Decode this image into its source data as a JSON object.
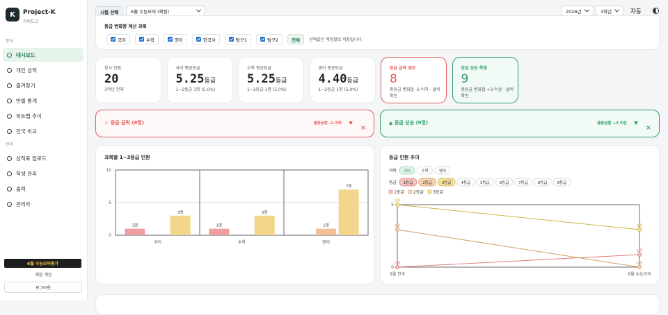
{
  "sidebar": {
    "logo": "K",
    "app_name": "Project-K",
    "subtitle": "가이드고",
    "sections": [
      {
        "title": "분석",
        "items": [
          "대시보드",
          "개인 성적",
          "즐겨찾기",
          "반별 통계",
          "히트맵 추이",
          "전국 비교"
        ]
      },
      {
        "title": "관리",
        "items": [
          "성적표 업로드",
          "학생 관리",
          "출력",
          "관리자"
        ]
      }
    ],
    "exam_badge": "6월 수능모의평가",
    "account": "체험 계정",
    "logout": "로그아웃"
  },
  "topbar": {
    "exam_label": "시험 선택",
    "exam": "6월 수능모의 (확정)",
    "year": "2026년",
    "grade": "3학년",
    "theme": "자동"
  },
  "subject_filter": {
    "title": "등급 변화량 계산 과목",
    "subjects": [
      "국어",
      "수학",
      "영어",
      "한국사",
      "탐구1",
      "탐구2"
    ],
    "all": "전체",
    "note": "선택값은 계정별로 저장됩니다."
  },
  "stats": [
    {
      "label": "응시 인원",
      "value": "20",
      "sub": "3학년 전체"
    },
    {
      "label": "국어 평균등급",
      "value": "5.25",
      "unit": "등급",
      "sub": "1~2등급 1명 (5.0%)"
    },
    {
      "label": "수학 평균등급",
      "value": "5.25",
      "unit": "등급",
      "sub": "1~2등급 1명 (5.0%)"
    },
    {
      "label": "영어 평균등급",
      "value": "4.40",
      "unit": "등급",
      "sub": "1~2등급 1명 (5.0%)"
    },
    {
      "label": "등급 급락 경보",
      "value": "8",
      "sub": "총등급 변화합 -2 이하 · 클릭 확인",
      "color": "#e25c5c"
    },
    {
      "label": "등급 상승 학생",
      "value": "9",
      "sub": "총등급 변화합 +3 이상 · 클릭 확인",
      "color": "#2f9e6c"
    }
  ],
  "alerts": [
    {
      "title": "⚠ 등급 급락 (8명)",
      "criterion": "총등급합 -2 이하",
      "color": "#e25c5c"
    },
    {
      "title": "▲ 등급 상승 (9명)",
      "criterion": "총등급합 +3 이상",
      "color": "#2f9e6c"
    }
  ],
  "chart_data": [
    {
      "type": "bar",
      "title": "과목별 1~3등급 인원",
      "categories": [
        "국어",
        "수학",
        "영어"
      ],
      "series": [
        {
          "color": "#ef9f9f",
          "values": [
            1,
            1,
            0
          ],
          "value_labels": [
            "1명",
            "1명",
            null
          ]
        },
        {
          "color": "#f5bf95",
          "values": [
            0,
            0,
            1
          ],
          "value_labels": [
            null,
            null,
            "1명"
          ]
        },
        {
          "color": "#f3d68c",
          "values": [
            3,
            3,
            7
          ],
          "value_labels": [
            "3명",
            "3명",
            "7명"
          ]
        }
      ],
      "ylim": [
        0,
        10
      ],
      "yticks": [
        0,
        5,
        10
      ],
      "grid": true
    },
    {
      "type": "line",
      "title": "등급 인원 추이",
      "subject_label": "과목",
      "subjects": [
        "국어",
        "수학",
        "영어"
      ],
      "grade_label": "등급",
      "grades": [
        "1등급",
        "2등급",
        "3등급",
        "4등급",
        "5등급",
        "6등급",
        "7등급",
        "8등급",
        "9등급"
      ],
      "categories": [
        "3월 전국",
        "6월 수능모의"
      ],
      "series": [
        {
          "name": "1등급",
          "color": "#e07a7a",
          "values": [
            0,
            1
          ],
          "value_labels": [
            "0명",
            "1명"
          ]
        },
        {
          "name": "2등급",
          "color": "#d39a5c",
          "values": [
            3,
            0
          ],
          "value_labels": [
            "3명",
            "0명"
          ]
        },
        {
          "name": "3등급",
          "color": "#cdb443",
          "values": [
            5,
            3
          ],
          "value_labels": [
            "5명",
            "3명"
          ]
        }
      ],
      "ylim": [
        0,
        5
      ],
      "yticks": [
        0,
        5
      ],
      "legend": "top-left"
    }
  ]
}
